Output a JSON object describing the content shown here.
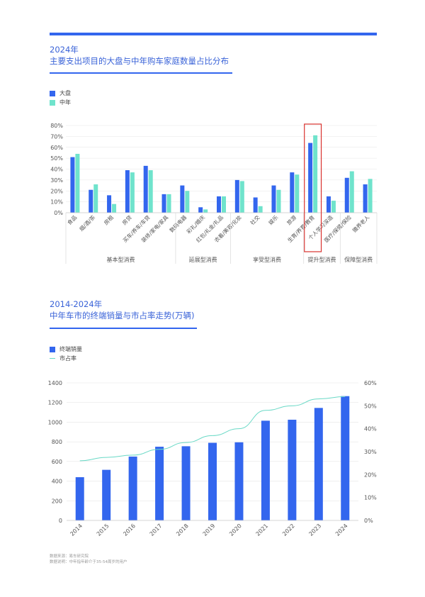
{
  "chart1": {
    "year": "2024年",
    "title": "主要支出项目的大盘与中年购车家庭数量占比分布",
    "legend": [
      {
        "name": "大盘",
        "color": "#3366ee"
      },
      {
        "name": "中年",
        "color": "#6fe3cc"
      }
    ]
  },
  "chart2": {
    "year": "2014-2024年",
    "title": "中年车市的终端销量与市占率走势(万辆)",
    "legend_bar": "终端销量",
    "legend_line": "市占率",
    "bar_color": "#3366ee",
    "line_color": "#6ad9c6"
  },
  "source": {
    "line1": "数据来源：易车研究院",
    "line2": "数据说明：中年指年龄介于35-54周岁的用户"
  },
  "chart_data": [
    {
      "type": "bar",
      "categories": [
        "食品",
        "烟/酒/茶",
        "房租",
        "房贷",
        "买车/养车/车贷",
        "装修/家电/家具",
        "数码电器",
        "彩礼/婚庆",
        "红包/礼金/礼品",
        "衣着/美容/化妆",
        "社交",
        "娱乐",
        "旅游",
        "生育/养育/教育",
        "个人学习深造",
        "医疗/保健/保险",
        "赡养老人"
      ],
      "series": [
        {
          "name": "大盘",
          "values": [
            51,
            21,
            16,
            39,
            43,
            17,
            25,
            5,
            15,
            30,
            14,
            25,
            37,
            64,
            15,
            32,
            26
          ]
        },
        {
          "name": "中年",
          "values": [
            54,
            26,
            8,
            37,
            39,
            17,
            20,
            3,
            15,
            29,
            6,
            21,
            35,
            71,
            11,
            38,
            31
          ]
        }
      ],
      "groups": [
        {
          "label": "基本型消费",
          "start": 0,
          "end": 5
        },
        {
          "label": "延展型消费",
          "start": 6,
          "end": 8
        },
        {
          "label": "享受型消费",
          "start": 9,
          "end": 12
        },
        {
          "label": "提升型消费",
          "start": 13,
          "end": 14
        },
        {
          "label": "保障型消费",
          "start": 15,
          "end": 16
        }
      ],
      "highlight_category": "生育/养育/教育",
      "y_ticks": [
        "0%",
        "10%",
        "20%",
        "30%",
        "40%",
        "50%",
        "60%",
        "70%",
        "80%"
      ],
      "ylim": [
        0,
        80
      ],
      "legend_position": "top-left"
    },
    {
      "type": "bar+line",
      "categories": [
        "2014",
        "2015",
        "2016",
        "2017",
        "2018",
        "2019",
        "2020",
        "2021",
        "2022",
        "2023",
        "2024"
      ],
      "series": [
        {
          "name": "终端销量",
          "type": "bar",
          "values": [
            440,
            515,
            650,
            750,
            755,
            790,
            795,
            1015,
            1025,
            1145,
            1265
          ]
        },
        {
          "name": "市占率",
          "type": "line",
          "values": [
            26,
            27.5,
            28.5,
            31,
            34,
            37,
            40,
            48,
            50,
            53,
            54
          ]
        }
      ],
      "y_ticks_left": [
        "0",
        "200",
        "400",
        "600",
        "800",
        "1000",
        "1200",
        "1400"
      ],
      "y_ticks_right": [
        "0%",
        "10%",
        "20%",
        "30%",
        "40%",
        "50%",
        "60%"
      ],
      "ylim_left": [
        0,
        1400
      ],
      "ylim_right": [
        0,
        60
      ],
      "legend_position": "top-left"
    }
  ]
}
